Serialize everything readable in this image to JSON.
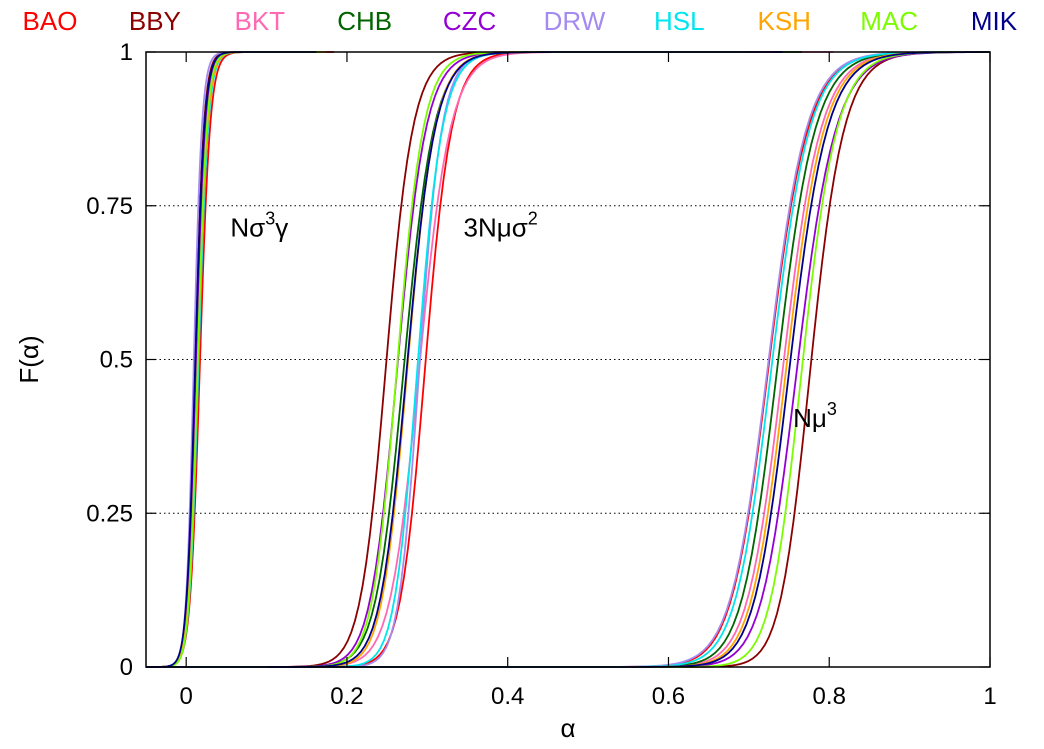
{
  "chart_data": {
    "type": "line",
    "title": "",
    "xlabel": "α",
    "ylabel": "F(α)",
    "xlim": [
      -0.05,
      1.0
    ],
    "ylim": [
      0,
      1
    ],
    "x_ticks": [
      0,
      0.2,
      0.4,
      0.6,
      0.8,
      1
    ],
    "x_tick_labels": [
      "0",
      "0.2",
      "0.4",
      "0.6",
      "0.8",
      "1"
    ],
    "y_ticks": [
      0,
      0.25,
      0.5,
      0.75,
      1
    ],
    "y_tick_labels": [
      "0",
      "0.25",
      "0.5",
      "0.75",
      "1"
    ],
    "grid": "horizontal dotted at 0.25, 0.5, 0.75",
    "legend_placement": "top, above plot",
    "annotations": [
      {
        "name": "nsigma3gamma",
        "base": "Nσ",
        "sup": "3",
        "tail": "γ",
        "x": 0.055,
        "y": 0.7
      },
      {
        "name": "3nmusigma2",
        "base": "3Nμσ",
        "sup": "2",
        "tail": "",
        "x": 0.345,
        "y": 0.7
      },
      {
        "name": "nmu3",
        "base": "Nμ",
        "sup": "3",
        "tail": "",
        "x": 0.755,
        "y": 0.39
      }
    ],
    "series": [
      {
        "name": "BAO",
        "color": "#ff0000",
        "groups": [
          {
            "mu": 0.016,
            "s": 0.042,
            "k": 1.15
          },
          {
            "mu": 0.292,
            "s": 0.112,
            "k": 1.3
          },
          {
            "mu": 0.718,
            "s": 0.165,
            "k": 1.25
          }
        ]
      },
      {
        "name": "BBY",
        "color": "#8b0000",
        "groups": [
          {
            "mu": 0.01,
            "s": 0.036,
            "k": 1.2
          },
          {
            "mu": 0.245,
            "s": 0.112,
            "k": 1.2
          },
          {
            "mu": 0.765,
            "s": 0.145,
            "k": 1.55
          }
        ]
      },
      {
        "name": "BKT",
        "color": "#ff69b4",
        "groups": [
          {
            "mu": 0.012,
            "s": 0.04,
            "k": 1.2
          },
          {
            "mu": 0.285,
            "s": 0.13,
            "k": 1.25
          },
          {
            "mu": 0.735,
            "s": 0.16,
            "k": 1.3
          }
        ]
      },
      {
        "name": "CHB",
        "color": "#006400",
        "groups": [
          {
            "mu": 0.012,
            "s": 0.04,
            "k": 1.2
          },
          {
            "mu": 0.266,
            "s": 0.125,
            "k": 1.25
          },
          {
            "mu": 0.728,
            "s": 0.16,
            "k": 1.3
          }
        ]
      },
      {
        "name": "CZC",
        "color": "#9400d3",
        "groups": [
          {
            "mu": 0.011,
            "s": 0.038,
            "k": 1.2
          },
          {
            "mu": 0.258,
            "s": 0.12,
            "k": 1.25
          },
          {
            "mu": 0.75,
            "s": 0.165,
            "k": 1.4
          }
        ]
      },
      {
        "name": "DRW",
        "color": "#a58bf0",
        "groups": [
          {
            "mu": 0.008,
            "s": 0.034,
            "k": 1.25
          },
          {
            "mu": 0.285,
            "s": 0.095,
            "k": 1.35
          },
          {
            "mu": 0.72,
            "s": 0.16,
            "k": 1.15
          }
        ]
      },
      {
        "name": "HSL",
        "color": "#00e5ee",
        "groups": [
          {
            "mu": 0.014,
            "s": 0.04,
            "k": 1.2
          },
          {
            "mu": 0.282,
            "s": 0.105,
            "k": 1.35
          },
          {
            "mu": 0.722,
            "s": 0.16,
            "k": 1.25
          }
        ]
      },
      {
        "name": "KSH",
        "color": "#ffa500",
        "groups": [
          {
            "mu": 0.013,
            "s": 0.04,
            "k": 1.2
          },
          {
            "mu": 0.27,
            "s": 0.115,
            "k": 1.3
          },
          {
            "mu": 0.738,
            "s": 0.16,
            "k": 1.35
          }
        ]
      },
      {
        "name": "MAC",
        "color": "#7cfc00",
        "groups": [
          {
            "mu": 0.013,
            "s": 0.038,
            "k": 1.2
          },
          {
            "mu": 0.258,
            "s": 0.11,
            "k": 1.25
          },
          {
            "mu": 0.755,
            "s": 0.15,
            "k": 1.5
          }
        ]
      },
      {
        "name": "MIK",
        "color": "#00008b",
        "groups": [
          {
            "mu": 0.01,
            "s": 0.038,
            "k": 1.2
          },
          {
            "mu": 0.27,
            "s": 0.118,
            "k": 1.25
          },
          {
            "mu": 0.742,
            "s": 0.16,
            "k": 1.35
          }
        ]
      }
    ]
  }
}
